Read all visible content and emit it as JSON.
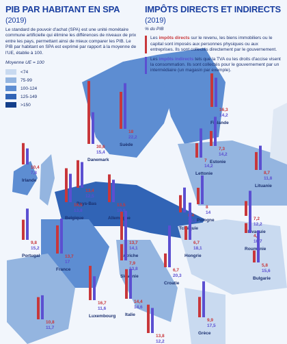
{
  "header": {
    "left_title": "PIB PAR HABITANT EN SPA",
    "left_year": "(2019)",
    "left_text": "Le standard de pouvoir d'achat (SPA) est une unité monétaire commune artificielle qui élimine les différences de niveaux de prix entre les pays, permettant ainsi de mieux comparer les PIB. Le PIB par habitant en SPA est exprimé par rapport à la moyenne de l'UE, établie à 100.",
    "left_note": "Moyenne UE = 100",
    "right_title": "IMPÔTS DIRECTS ET INDIRECTS",
    "right_year": "(2019)",
    "right_unit": "% du PIB",
    "direct": {
      "pre": "Les ",
      "bold": "impôts directs",
      "post": " sur le revenu, les biens immobiliers ou le capital sont imposés aux personnes physiques ou aux entreprises. Ils sont collectés directement par le gouvernement."
    },
    "indirect": {
      "pre": "Les ",
      "bold": "impôts indirects",
      "post": " tels que la TVA ou les droits d'accise visent la consommation. Ils sont collectés pour le gouvernement par un intermédiaire (un magasin par exemple)."
    }
  },
  "legend": [
    {
      "label": "<74",
      "color": "#c9daf0"
    },
    {
      "label": "75-99",
      "color": "#94b5e0"
    },
    {
      "label": "100-124",
      "color": "#5d8dd2"
    },
    {
      "label": "125-149",
      "color": "#3164b6"
    },
    {
      "label": ">150",
      "color": "#143f8a"
    }
  ],
  "colors": [
    "#c8373b",
    "#5b4fd1"
  ],
  "countries": [
    {
      "name": "Irlande",
      "values": [
        10.4,
        7.8
      ],
      "value_labels": [
        "10,4",
        "7,8"
      ]
    },
    {
      "name": "Danemark",
      "values": [
        30.6,
        15.4
      ],
      "value_labels": [
        "30,6",
        "15,4"
      ]
    },
    {
      "name": "Suède",
      "values": [
        18,
        22.2
      ],
      "value_labels": [
        "18",
        "22,2"
      ]
    },
    {
      "name": "Finlande",
      "values": [
        16.3,
        14.2
      ],
      "value_labels": [
        "16,3",
        "14,2"
      ]
    },
    {
      "name": "Estonie",
      "values": [
        7.3,
        14.2
      ],
      "value_labels": [
        "7,3",
        "14,2"
      ]
    },
    {
      "name": "Lettonie",
      "values": [
        7,
        14.2
      ],
      "value_labels": [
        "7",
        "14,2"
      ]
    },
    {
      "name": "Lituanie",
      "values": [
        8.7,
        11.8
      ],
      "value_labels": [
        "8,7",
        "11,8"
      ]
    },
    {
      "name": "Pays-Bas",
      "values": [
        13.4,
        12.5
      ],
      "value_labels": [
        "13,4",
        "12,5"
      ]
    },
    {
      "name": "Belgique",
      "values": [
        16.5,
        13.8
      ],
      "value_labels": [
        "16,5",
        "13,8"
      ]
    },
    {
      "name": "Allemagne",
      "values": [
        13.5,
        10.9
      ],
      "value_labels": [
        "13,5",
        "10,9"
      ]
    },
    {
      "name": "Pologne",
      "values": [
        8,
        14
      ],
      "value_labels": [
        "8",
        "14"
      ]
    },
    {
      "name": "Tchéquie",
      "values": [
        8.4,
        12.1
      ],
      "value_labels": [
        "8,4",
        "12,1"
      ]
    },
    {
      "name": "Slovaquie",
      "values": [
        7.2,
        12.2
      ],
      "value_labels": [
        "7,2",
        "12,2"
      ]
    },
    {
      "name": "Portugal",
      "values": [
        9.8,
        15.2
      ],
      "value_labels": [
        "9,8",
        "15,2"
      ]
    },
    {
      "name": "France",
      "values": [
        13.7,
        17
      ],
      "value_labels": [
        "13,7",
        "17"
      ]
    },
    {
      "name": "Autriche",
      "values": [
        13.7,
        14.1
      ],
      "value_labels": [
        "13,7",
        "14,1"
      ]
    },
    {
      "name": "Hongrie",
      "values": [
        6.7,
        18.1
      ],
      "value_labels": [
        "6,7",
        "18,1"
      ]
    },
    {
      "name": "Roumanie",
      "values": [
        4.8,
        10.7
      ],
      "value_labels": [
        "4,8",
        "10,7"
      ]
    },
    {
      "name": "Slovénie",
      "values": [
        7.9,
        13.8
      ],
      "value_labels": [
        "7,9",
        "13,8"
      ]
    },
    {
      "name": "Croatie",
      "values": [
        6.7,
        20.3
      ],
      "value_labels": [
        "6,7",
        "20,3"
      ]
    },
    {
      "name": "Bulgarie",
      "values": [
        5.8,
        15.6
      ],
      "value_labels": [
        "5,8",
        "15,6"
      ]
    },
    {
      "name": "Luxembourg",
      "values": [
        16.7,
        11.6
      ],
      "value_labels": [
        "16,7",
        "11,6"
      ]
    },
    {
      "name": "Italie",
      "values": [
        14.4,
        14.6
      ],
      "value_labels": [
        "14,4",
        "14,6"
      ]
    },
    {
      "name": "Grèce",
      "values": [
        9.9,
        17.5
      ],
      "value_labels": [
        "9,9",
        "17,5"
      ]
    },
    {
      "values": [
        10.8,
        11.7
      ],
      "value_labels": [
        "10,8",
        "11,7"
      ]
    },
    {
      "values": [
        13.8,
        12.2
      ],
      "value_labels": [
        "13,8",
        "12,2"
      ]
    }
  ]
}
